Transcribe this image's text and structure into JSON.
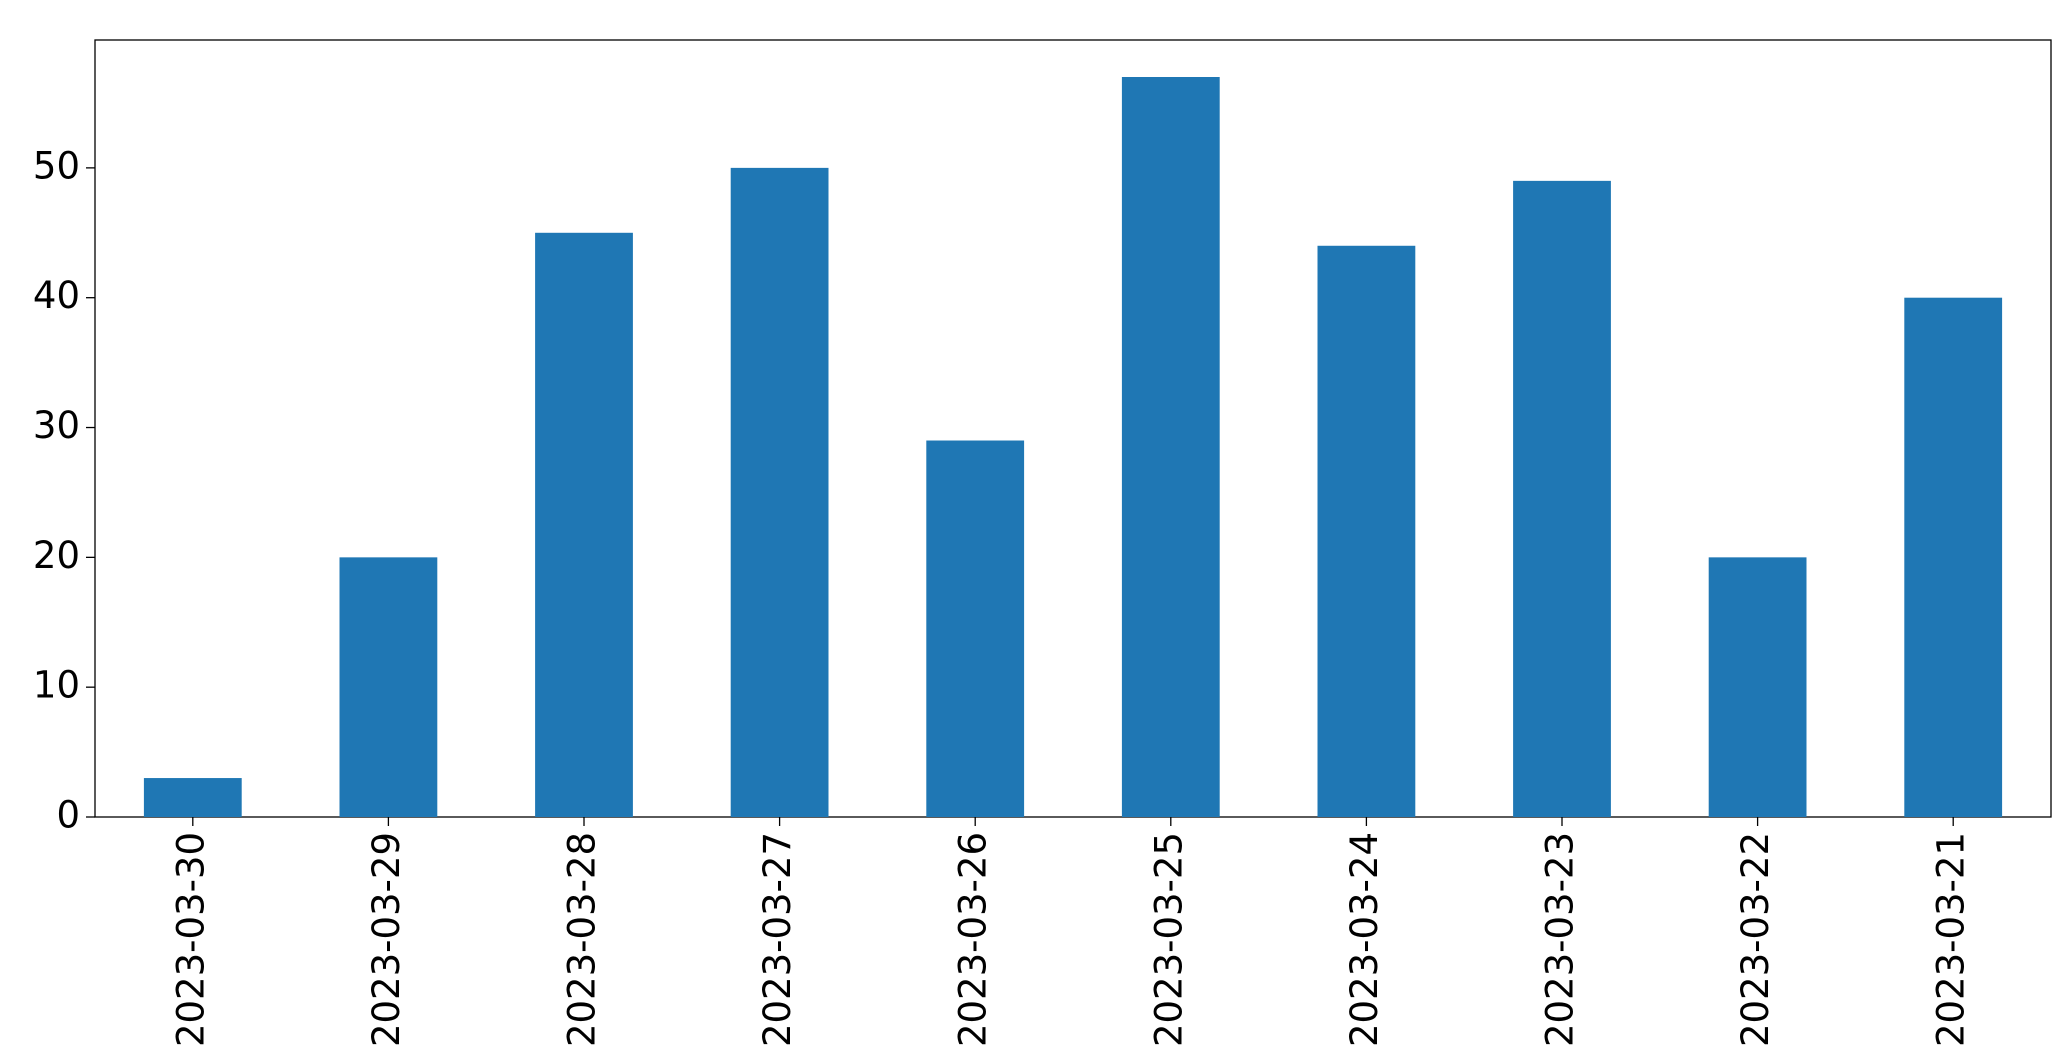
{
  "chart_data": {
    "type": "bar",
    "categories": [
      "2023-03-30",
      "2023-03-29",
      "2023-03-28",
      "2023-03-27",
      "2023-03-26",
      "2023-03-25",
      "2023-03-24",
      "2023-03-23",
      "2023-03-22",
      "2023-03-21"
    ],
    "values": [
      3,
      20,
      45,
      50,
      29,
      57,
      44,
      49,
      20,
      40
    ],
    "color": "#1f77b4",
    "ylim": [
      0,
      59.85
    ],
    "yticks": [
      0,
      10,
      20,
      30,
      40,
      50
    ],
    "grid": false
  }
}
